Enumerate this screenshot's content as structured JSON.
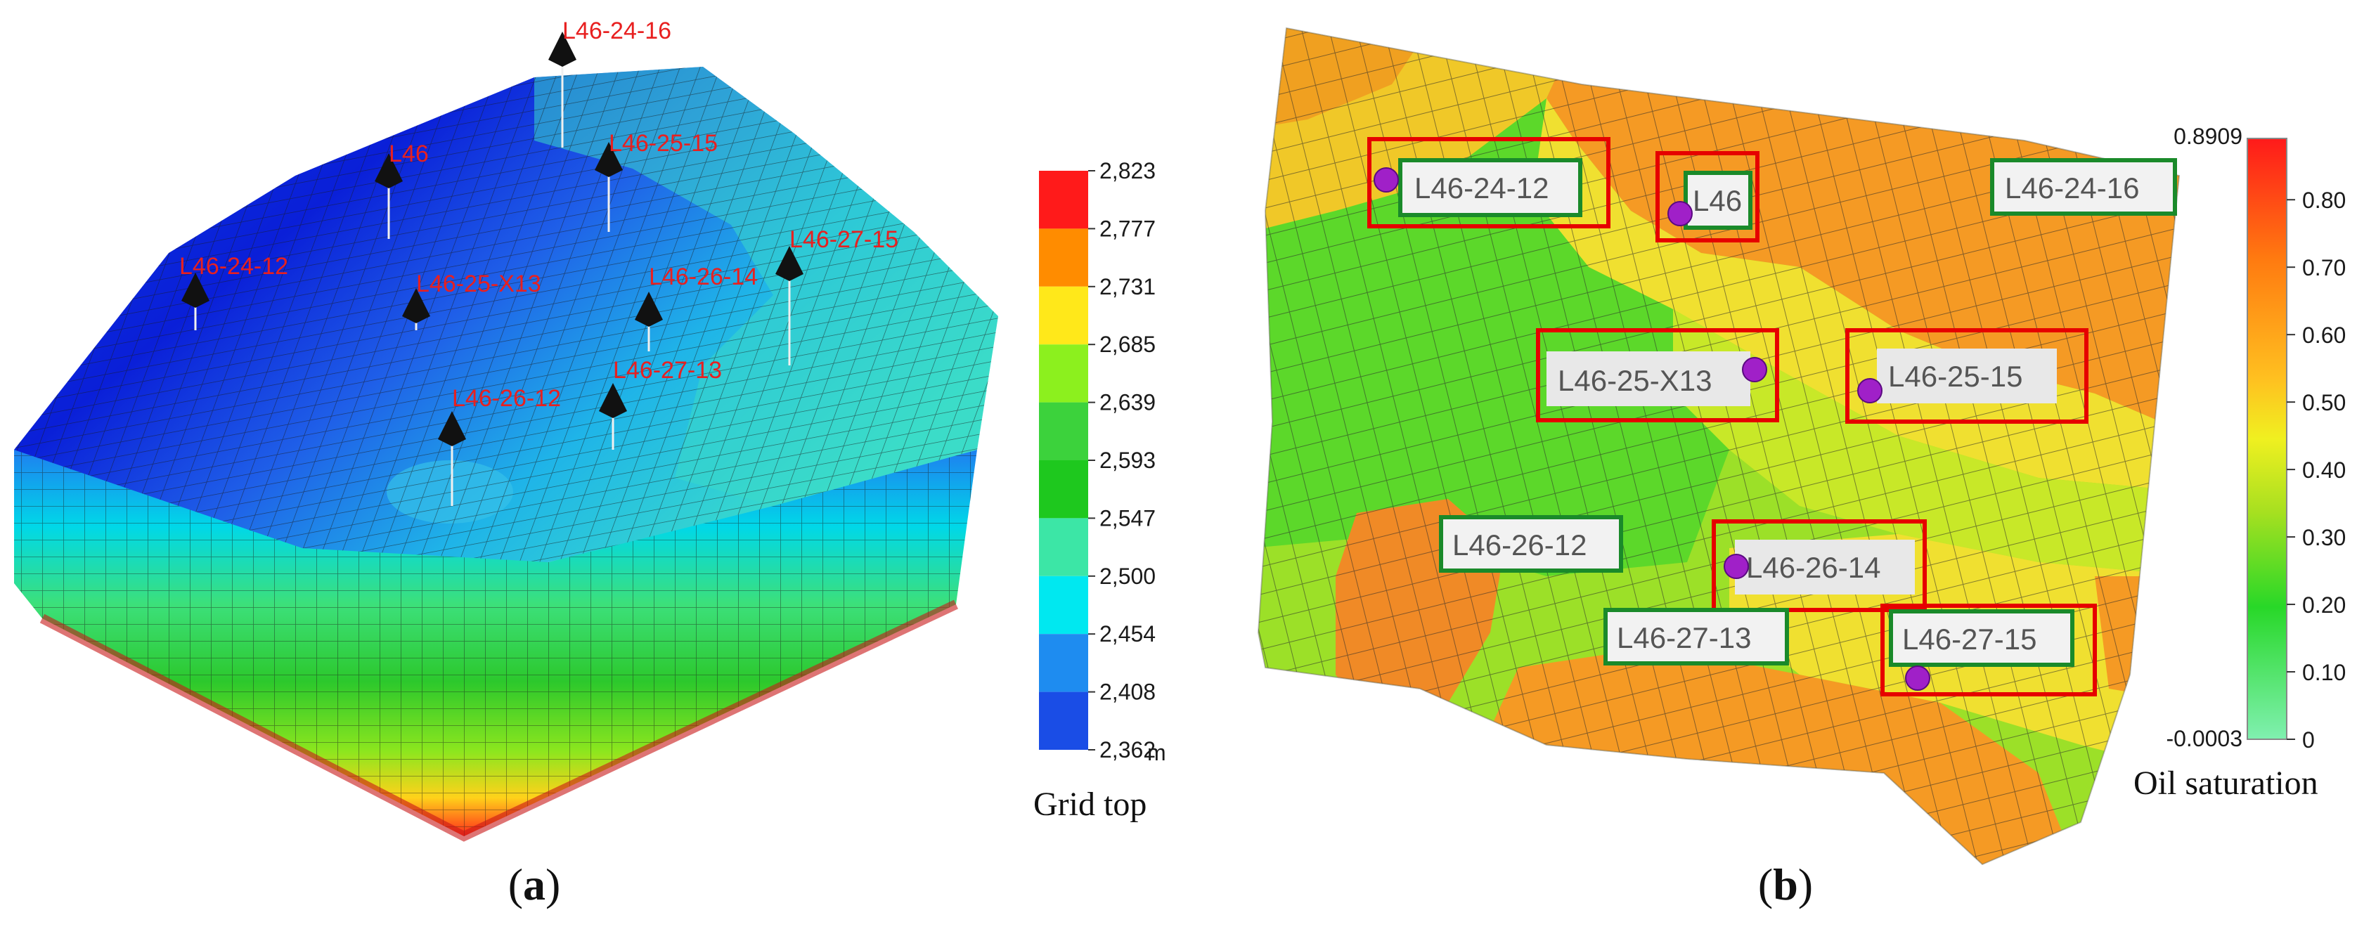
{
  "panel_a": {
    "caption_letter": "a",
    "colorbar": {
      "title": "Grid top",
      "unit": "m",
      "ticks": [
        "2,823",
        "2,777",
        "2,731",
        "2,685",
        "2,639",
        "2,593",
        "2,547",
        "2,500",
        "2,454",
        "2,408",
        "2,362"
      ],
      "colors": [
        "#ff1a1a",
        "#ff8c00",
        "#ffe81a",
        "#8cf01e",
        "#3cd23c",
        "#1ec81e",
        "#3ce6a6",
        "#00e8f0",
        "#1e8cf0",
        "#1a4de6",
        "#0000ff"
      ]
    },
    "wells": [
      {
        "name": "L46-24-16"
      },
      {
        "name": "L46"
      },
      {
        "name": "L46-25-15"
      },
      {
        "name": "L46-27-15"
      },
      {
        "name": "L46-24-12"
      },
      {
        "name": "L46-25-X13"
      },
      {
        "name": "L46-26-14"
      },
      {
        "name": "L46-27-13"
      },
      {
        "name": "L46-26-12"
      }
    ]
  },
  "panel_b": {
    "caption_letter": "b",
    "colorbar": {
      "title": "Oil saturation",
      "max_label": "0.8909",
      "min_label": "-0.0003",
      "ticks": [
        "0.80",
        "0.70",
        "0.60",
        "0.50",
        "0.40",
        "0.30",
        "0.20",
        "0.10",
        "0"
      ]
    },
    "wells": [
      {
        "name": "L46-24-12",
        "box": "green",
        "highlight": true
      },
      {
        "name": "L46",
        "box": "green",
        "highlight": true
      },
      {
        "name": "L46-24-16",
        "box": "green",
        "highlight": false
      },
      {
        "name": "L46-25-X13",
        "box": "grey",
        "highlight": true
      },
      {
        "name": "L46-25-15",
        "box": "grey",
        "highlight": true
      },
      {
        "name": "L46-26-12",
        "box": "green",
        "highlight": false
      },
      {
        "name": "L46-26-14",
        "box": "grey",
        "highlight": true
      },
      {
        "name": "L46-27-13",
        "box": "green",
        "highlight": false
      },
      {
        "name": "L46-27-15",
        "box": "green",
        "highlight": true
      }
    ]
  }
}
